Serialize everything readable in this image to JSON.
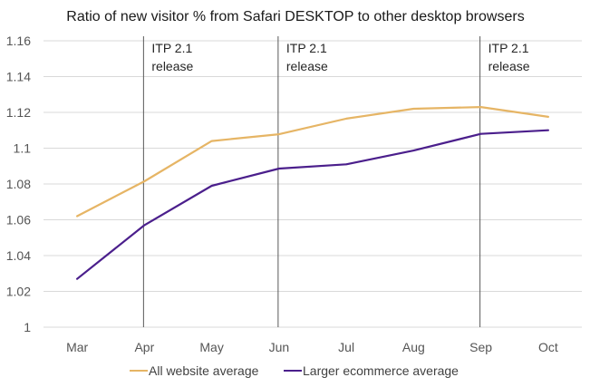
{
  "chart_data": {
    "type": "line",
    "title": "Ratio of new visitor % from Safari DESKTOP to other desktop browsers",
    "xlabel": "",
    "ylabel": "",
    "categories": [
      "Mar",
      "Apr",
      "May",
      "Jun",
      "Jul",
      "Aug",
      "Sep",
      "Oct"
    ],
    "ylim": [
      1,
      1.16
    ],
    "yticks": [
      1,
      1.02,
      1.04,
      1.06,
      1.08,
      1.1,
      1.12,
      1.14,
      1.16
    ],
    "ytick_labels": [
      "1",
      "1.02",
      "1.04",
      "1.06",
      "1.08",
      "1.1",
      "1.12",
      "1.14",
      "1.16"
    ],
    "grid": true,
    "legend_position": "bottom",
    "series": [
      {
        "name": "All website average",
        "color": "#E6B565",
        "values": [
          1.062,
          1.0815,
          1.104,
          1.1078,
          1.1165,
          1.122,
          1.123,
          1.1175
        ]
      },
      {
        "name": "Larger ecommerce average",
        "color": "#4B1F8C",
        "values": [
          1.027,
          1.057,
          1.079,
          1.0886,
          1.091,
          1.0987,
          1.108,
          1.11
        ]
      }
    ],
    "annotations": [
      {
        "category": "Apr",
        "line1": "ITP 2.1",
        "line2": "release"
      },
      {
        "category": "Jun",
        "line1": "ITP 2.1",
        "line2": "release"
      },
      {
        "category": "Sep",
        "line1": "ITP 2.1",
        "line2": "release"
      }
    ]
  }
}
